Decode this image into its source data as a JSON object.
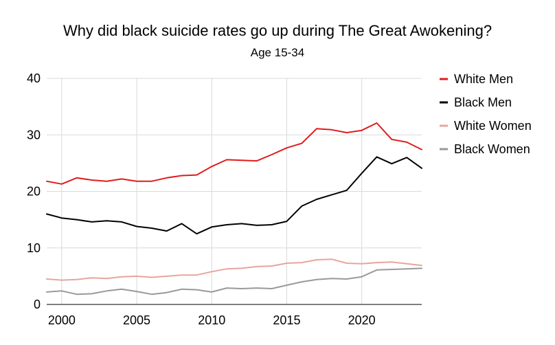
{
  "chart_data": {
    "type": "line",
    "title": "Why did black suicide rates go up during The Great Awokening?",
    "subtitle": "Age 15-34",
    "xlabel": "",
    "ylabel": "",
    "xlim": [
      1999,
      2024
    ],
    "ylim": [
      0,
      40
    ],
    "x_ticks": [
      2000,
      2005,
      2010,
      2015,
      2020
    ],
    "y_ticks": [
      0,
      10,
      20,
      30,
      40
    ],
    "grid": true,
    "legend_position": "right",
    "x": [
      1999,
      2000,
      2001,
      2002,
      2003,
      2004,
      2005,
      2006,
      2007,
      2008,
      2009,
      2010,
      2011,
      2012,
      2013,
      2014,
      2015,
      2016,
      2017,
      2018,
      2019,
      2020,
      2021,
      2022,
      2023,
      2024
    ],
    "series": [
      {
        "name": "White Men",
        "color": "#e01b1b",
        "values": [
          21.8,
          21.3,
          22.4,
          22.0,
          21.8,
          22.2,
          21.8,
          21.8,
          22.4,
          22.8,
          22.9,
          24.4,
          25.6,
          25.5,
          25.4,
          26.5,
          27.7,
          28.5,
          31.1,
          30.9,
          30.4,
          30.8,
          32.1,
          29.2,
          28.7,
          27.4
        ]
      },
      {
        "name": "Black Men",
        "color": "#000000",
        "values": [
          16.0,
          15.3,
          15.0,
          14.6,
          14.8,
          14.6,
          13.8,
          13.5,
          13.0,
          14.3,
          12.5,
          13.7,
          14.1,
          14.3,
          14.0,
          14.1,
          14.7,
          17.4,
          18.6,
          19.4,
          20.2,
          23.2,
          26.1,
          24.9,
          26.0,
          24.1
        ]
      },
      {
        "name": "White Women",
        "color": "#e8a49d",
        "values": [
          4.5,
          4.3,
          4.4,
          4.7,
          4.6,
          4.9,
          5.0,
          4.8,
          5.0,
          5.2,
          5.2,
          5.8,
          6.3,
          6.4,
          6.7,
          6.8,
          7.3,
          7.4,
          7.9,
          8.0,
          7.3,
          7.2,
          7.4,
          7.5,
          7.2,
          6.9
        ]
      },
      {
        "name": "Black Women",
        "color": "#999999",
        "values": [
          2.2,
          2.4,
          1.8,
          1.9,
          2.4,
          2.7,
          2.3,
          1.8,
          2.1,
          2.7,
          2.6,
          2.2,
          2.9,
          2.8,
          2.9,
          2.8,
          3.4,
          4.0,
          4.4,
          4.6,
          4.5,
          4.9,
          6.1,
          6.2,
          6.3,
          6.4
        ]
      }
    ]
  }
}
